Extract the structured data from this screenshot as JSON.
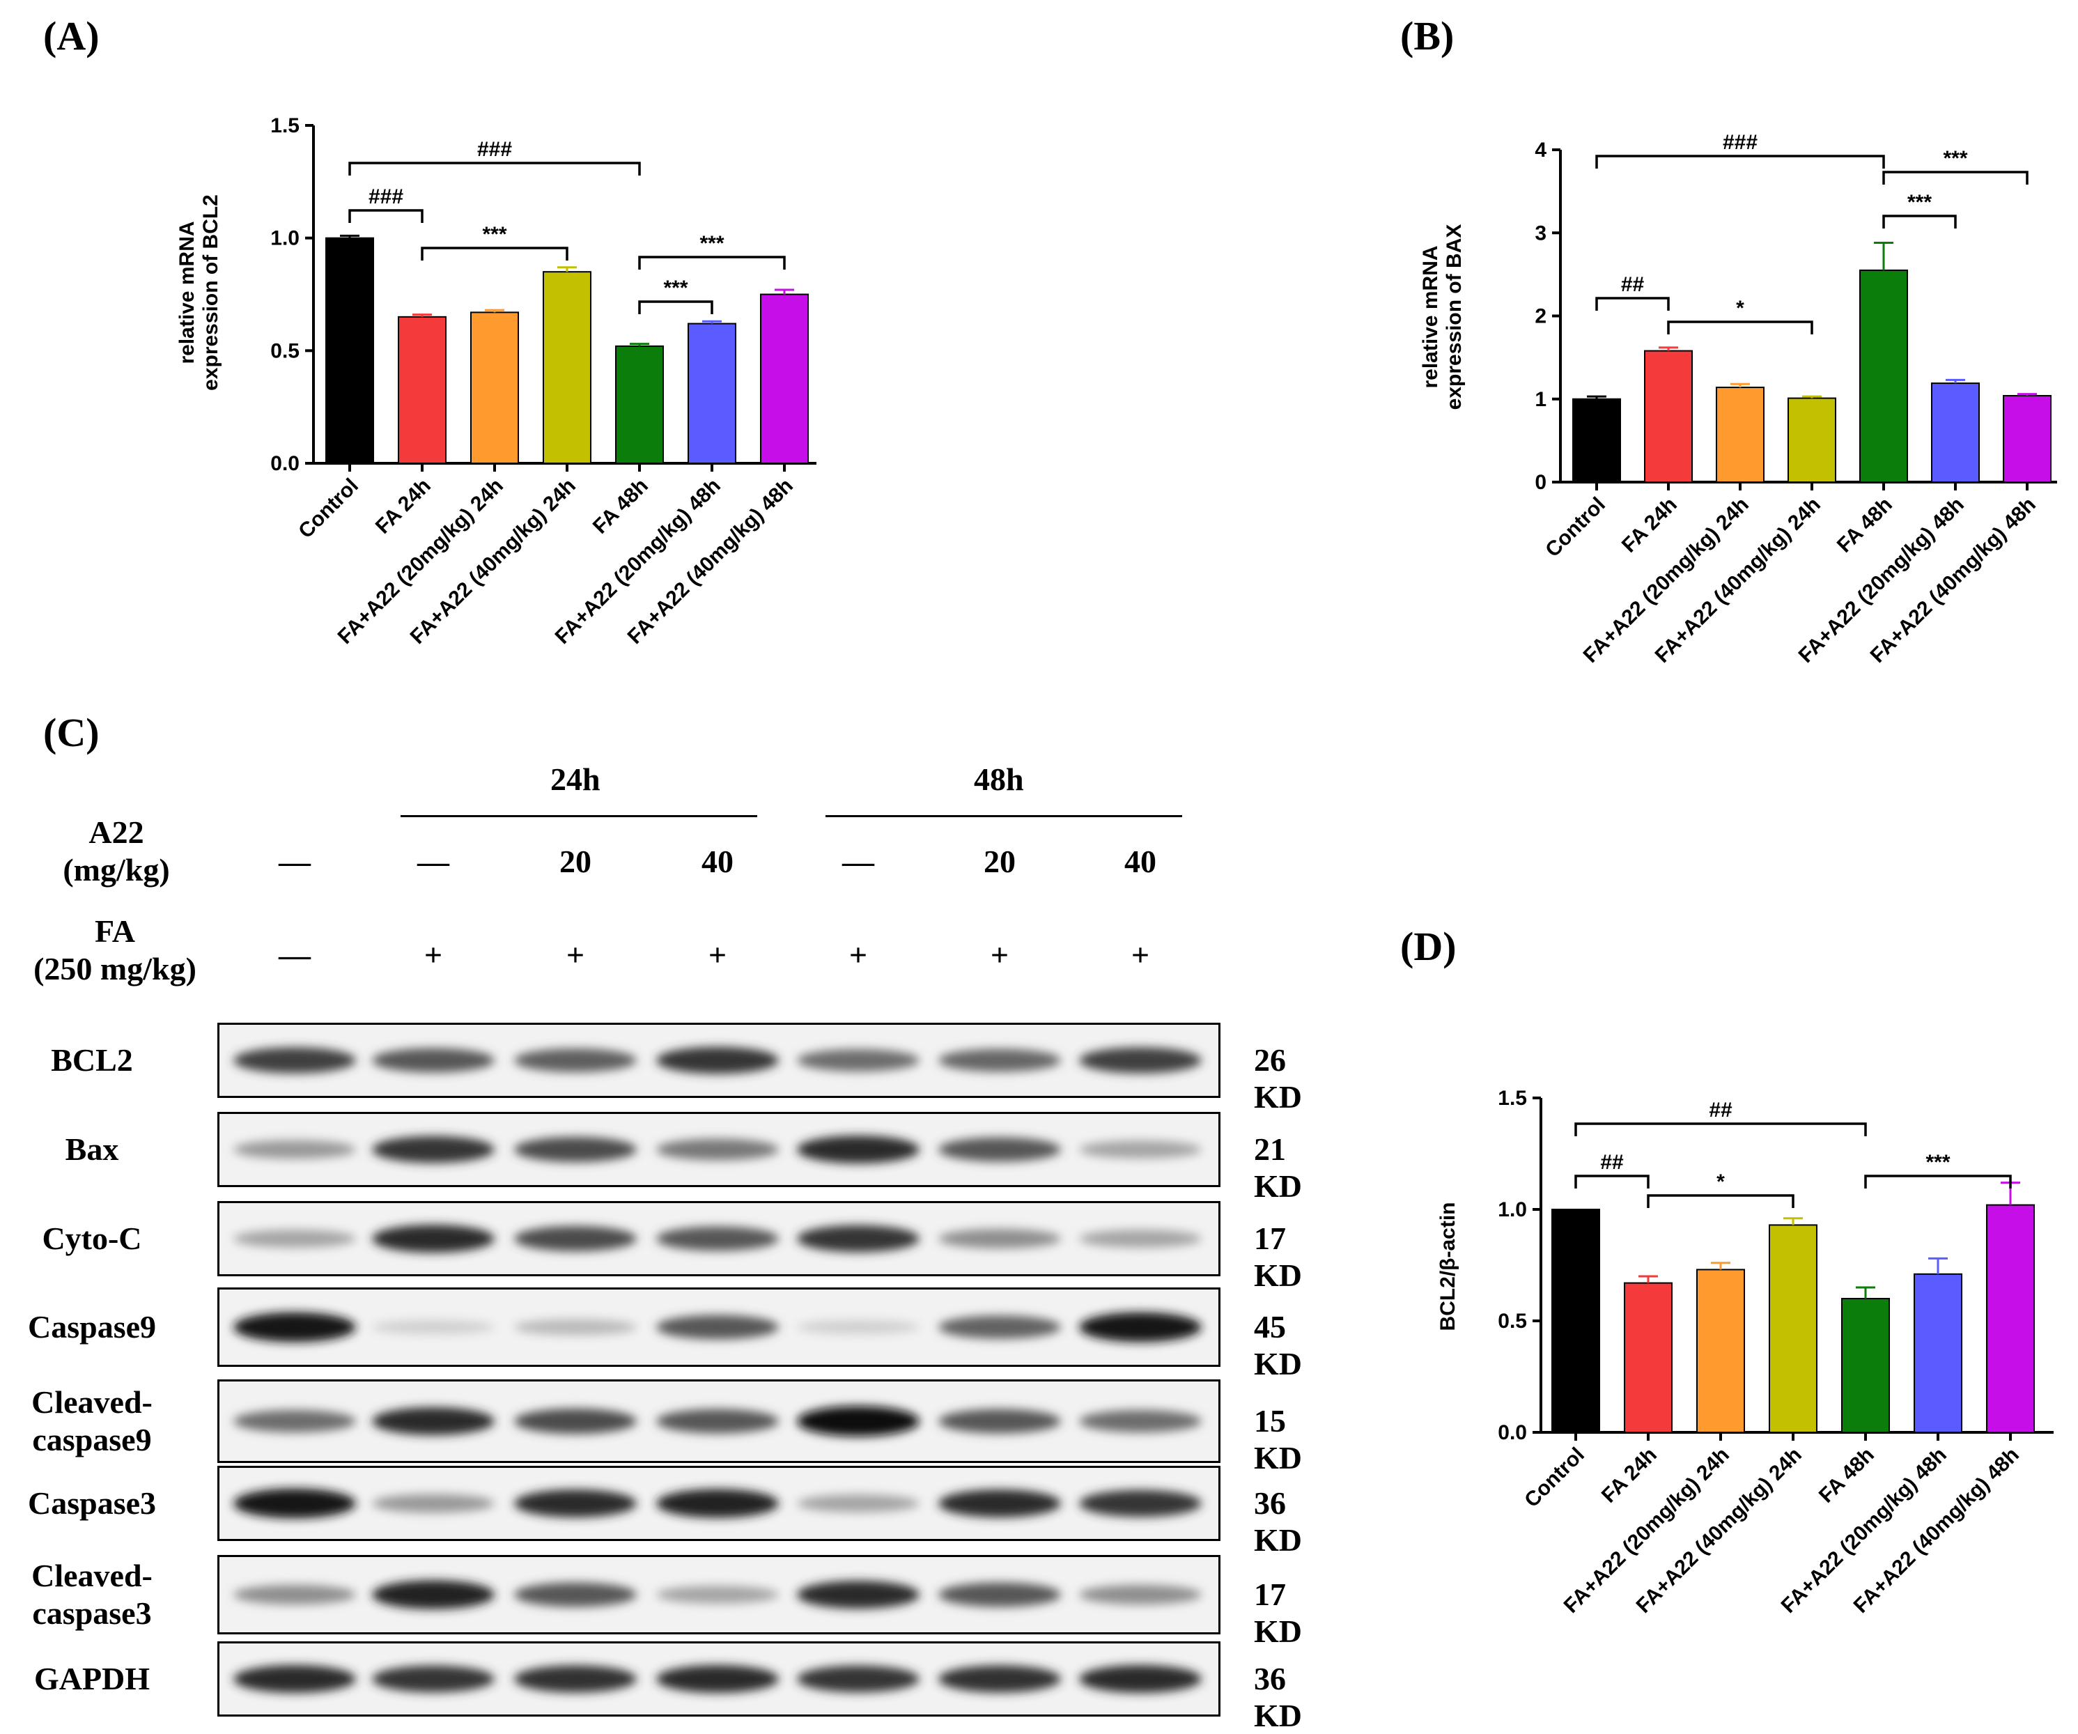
{
  "panels": {
    "A": "(A)",
    "B": "(B)",
    "C": "(C)",
    "D": "(D)"
  },
  "colors": [
    "#000000",
    "#f43a3a",
    "#ff9a2e",
    "#c2c000",
    "#0b7d0b",
    "#5a5cff",
    "#c60fe8"
  ],
  "chart_data": [
    {
      "id": "A",
      "type": "bar",
      "categories": [
        "Control",
        "FA 24h",
        "FA+A22 (20mg/kg) 24h",
        "FA+A22 (40mg/kg) 24h",
        "FA 48h",
        "FA+A22 (20mg/kg) 48h",
        "FA+A22 (40mg/kg) 48h"
      ],
      "values": [
        1.0,
        0.65,
        0.67,
        0.85,
        0.52,
        0.62,
        0.75
      ],
      "errors": [
        0.01,
        0.01,
        0.01,
        0.02,
        0.01,
        0.01,
        0.02
      ],
      "ylabel_lines": [
        "relative mRNA",
        "expression of BCL2"
      ],
      "ylim": [
        0,
        1.5
      ],
      "yticks": [
        "0.0",
        "0.5",
        "1.0",
        "1.5"
      ],
      "tick_values": [
        0,
        0.5,
        1.0,
        1.5
      ],
      "annotations": [
        {
          "from": 0,
          "to": 4,
          "label": "###"
        },
        {
          "from": 0,
          "to": 1,
          "label": "###"
        },
        {
          "from": 1,
          "to": 3,
          "label": "***"
        },
        {
          "from": 4,
          "to": 6,
          "label": "***"
        },
        {
          "from": 4,
          "to": 5,
          "label": "***"
        }
      ]
    },
    {
      "id": "B",
      "type": "bar",
      "categories": [
        "Control",
        "FA 24h",
        "FA+A22 (20mg/kg) 24h",
        "FA+A22 (40mg/kg) 24h",
        "FA 48h",
        "FA+A22 (20mg/kg) 48h",
        "FA+A22 (40mg/kg) 48h"
      ],
      "values": [
        1.0,
        1.58,
        1.14,
        1.01,
        2.55,
        1.19,
        1.04
      ],
      "errors": [
        0.03,
        0.04,
        0.04,
        0.02,
        0.33,
        0.04,
        0.02
      ],
      "ylabel_lines": [
        "relative mRNA",
        "expression of BAX"
      ],
      "ylim": [
        0,
        4
      ],
      "yticks": [
        "0",
        "1",
        "2",
        "3",
        "4"
      ],
      "tick_values": [
        0,
        1,
        2,
        3,
        4
      ],
      "annotations": [
        {
          "from": 0,
          "to": 4,
          "label": "###"
        },
        {
          "from": 4,
          "to": 6,
          "label": "***"
        },
        {
          "from": 4,
          "to": 5,
          "label": "***"
        },
        {
          "from": 0,
          "to": 1,
          "label": "##"
        },
        {
          "from": 1,
          "to": 3,
          "label": "*"
        }
      ]
    },
    {
      "id": "D",
      "type": "bar",
      "categories": [
        "Control",
        "FA 24h",
        "FA+A22 (20mg/kg) 24h",
        "FA+A22 (40mg/kg) 24h",
        "FA 48h",
        "FA+A22 (20mg/kg) 48h",
        "FA+A22 (40mg/kg) 48h"
      ],
      "values": [
        1.0,
        0.67,
        0.73,
        0.93,
        0.6,
        0.71,
        1.02
      ],
      "errors": [
        0.0,
        0.03,
        0.03,
        0.03,
        0.05,
        0.07,
        0.1
      ],
      "ylabel_lines": [
        "BCL2/β-actin"
      ],
      "ylim": [
        0,
        1.5
      ],
      "yticks": [
        "0.0",
        "0.5",
        "1.0",
        "1.5"
      ],
      "tick_values": [
        0,
        0.5,
        1.0,
        1.5
      ],
      "annotations": [
        {
          "from": 0,
          "to": 4,
          "label": "##"
        },
        {
          "from": 0,
          "to": 1,
          "label": "##"
        },
        {
          "from": 1,
          "to": 3,
          "label": "*"
        },
        {
          "from": 4,
          "to": 6,
          "label": "***"
        }
      ]
    }
  ],
  "blot": {
    "group_24h": "24h",
    "group_48h": "48h",
    "a22_label_1": "A22",
    "a22_label_2": "(mg/kg)",
    "fa_label_1": "FA",
    "fa_label_2": "(250 mg/kg)",
    "a22_values": [
      "—",
      "—",
      "20",
      "40",
      "—",
      "20",
      "40"
    ],
    "fa_values": [
      "—",
      "+",
      "+",
      "+",
      "+",
      "+",
      "+"
    ],
    "rows": [
      {
        "name": "BCL2",
        "kd": "26 KD",
        "intensity": [
          0.75,
          0.65,
          0.62,
          0.8,
          0.55,
          0.58,
          0.75
        ]
      },
      {
        "name": "Bax",
        "kd": "21 KD",
        "intensity": [
          0.35,
          0.8,
          0.7,
          0.5,
          0.85,
          0.65,
          0.3
        ]
      },
      {
        "name": "Cyto-C",
        "kd": "17 KD",
        "intensity": [
          0.3,
          0.85,
          0.7,
          0.65,
          0.8,
          0.4,
          0.3
        ]
      },
      {
        "name": "Caspase9",
        "kd": "45 KD",
        "intensity": [
          0.95,
          0.1,
          0.2,
          0.65,
          0.1,
          0.6,
          0.95
        ]
      },
      {
        "name_1": "Cleaved-",
        "name_2": "caspase9",
        "kd": "15 KD",
        "intensity": [
          0.55,
          0.85,
          0.7,
          0.65,
          0.98,
          0.65,
          0.55
        ]
      },
      {
        "name": "Caspase3",
        "kd": "36 KD",
        "intensity": [
          0.95,
          0.35,
          0.85,
          0.9,
          0.3,
          0.85,
          0.8
        ]
      },
      {
        "name_1": "Cleaved-",
        "name_2": "caspase3",
        "kd": "17 KD",
        "intensity": [
          0.4,
          0.9,
          0.65,
          0.3,
          0.85,
          0.65,
          0.4
        ]
      },
      {
        "name": "GAPDH",
        "kd": "36 KD",
        "intensity": [
          0.85,
          0.8,
          0.82,
          0.85,
          0.8,
          0.82,
          0.85
        ]
      }
    ]
  }
}
